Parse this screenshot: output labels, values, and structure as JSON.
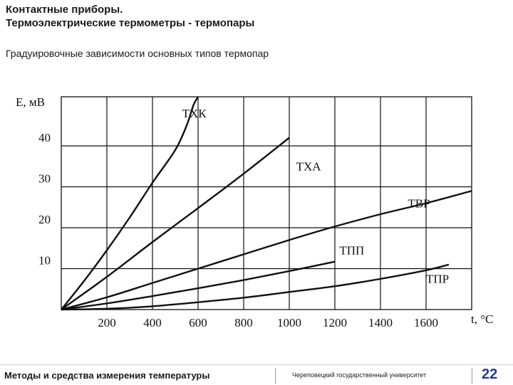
{
  "slide": {
    "title_line1": "Контактные приборы.",
    "title_line2": "Термоэлектрические термометры - термопары",
    "subtitle": "Градуировочные зависимости основных типов термопар"
  },
  "footer": {
    "course": "Методы и средства измерения температуры",
    "university": "Череповецкий государственный университет",
    "page_number": "22"
  },
  "chart_data": {
    "type": "line",
    "ylabel": "E, мВ",
    "xlabel": "t, °C",
    "xlim": [
      0,
      1800
    ],
    "ylim": [
      0,
      52
    ],
    "x_ticks": [
      200,
      400,
      600,
      800,
      1000,
      1200,
      1400,
      1600
    ],
    "y_ticks": [
      10,
      20,
      30,
      40
    ],
    "grid": true,
    "series": [
      {
        "name": "ТХК",
        "x": [
          0,
          100,
          200,
          300,
          400,
          500,
          550,
          580,
          600
        ],
        "y": [
          0,
          7,
          14.5,
          22.5,
          31,
          39,
          45,
          50,
          52
        ]
      },
      {
        "name": "ТХА",
        "x": [
          0,
          200,
          400,
          600,
          800,
          1000
        ],
        "y": [
          0,
          8,
          16.5,
          24.8,
          33.2,
          42
        ]
      },
      {
        "name": "ТВР",
        "x": [
          0,
          200,
          400,
          600,
          800,
          1000,
          1200,
          1400,
          1600,
          1800
        ],
        "y": [
          0,
          3,
          6.5,
          10,
          13.5,
          17,
          20.3,
          23.3,
          26,
          29
        ]
      },
      {
        "name": "ТПП",
        "x": [
          0,
          200,
          400,
          600,
          800,
          1000,
          1200
        ],
        "y": [
          0,
          1.5,
          3.3,
          5.2,
          7.2,
          9.4,
          11.7
        ]
      },
      {
        "name": "ТПР",
        "x": [
          0,
          200,
          400,
          600,
          800,
          1000,
          1200,
          1400,
          1600,
          1700
        ],
        "y": [
          0,
          0.2,
          0.8,
          1.8,
          2.9,
          4.3,
          5.7,
          7.5,
          9.6,
          11
        ]
      }
    ],
    "series_label_points": [
      {
        "x": 530,
        "y": 47
      },
      {
        "x": 1030,
        "y": 34
      },
      {
        "x": 1520,
        "y": 25
      },
      {
        "x": 1220,
        "y": 13.5
      },
      {
        "x": 1600,
        "y": 6.5
      }
    ]
  }
}
